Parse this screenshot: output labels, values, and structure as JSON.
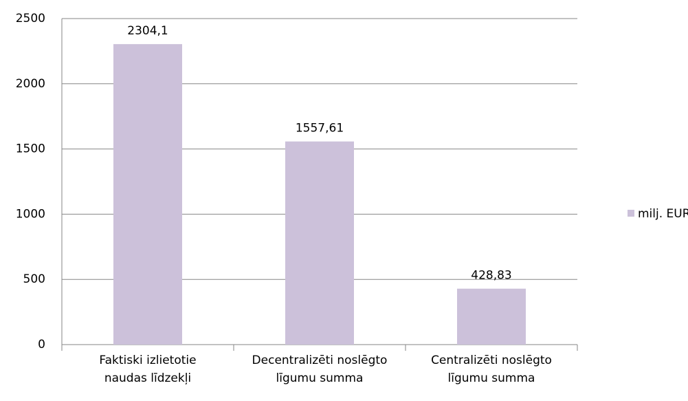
{
  "chart_data": {
    "type": "bar",
    "categories": [
      "Faktiski izlietotie\nnaudas līdzekļi",
      "Decentralizēti noslēgto\nlīgumu summa",
      "Centralizēti noslēgto\nlīgumu summa"
    ],
    "series": [
      {
        "name": "milj. EUR",
        "color": "#ccc1da",
        "values": [
          2304.1,
          1557.61,
          428.83
        ],
        "value_labels": [
          "2304,1",
          "1557,61",
          "428,83"
        ]
      }
    ],
    "ylim": [
      0,
      2500
    ],
    "yticks": [
      0,
      500,
      1000,
      1500,
      2000,
      2500
    ],
    "grid": true,
    "legend": "right"
  }
}
